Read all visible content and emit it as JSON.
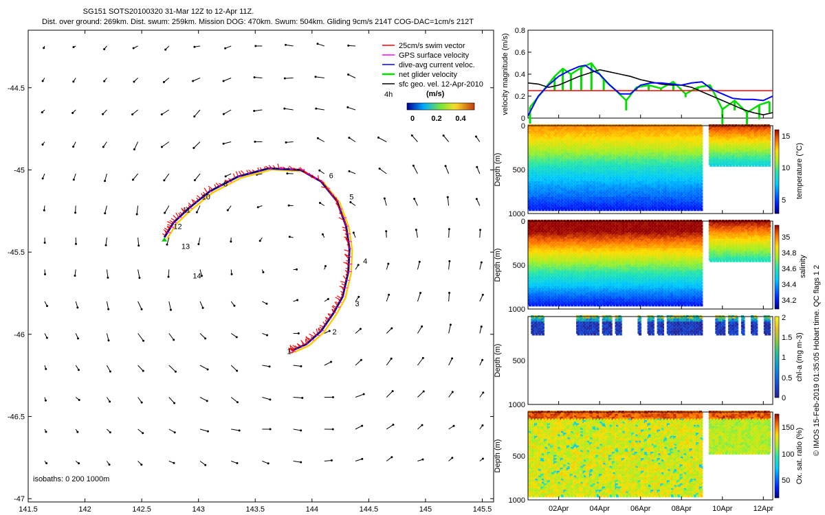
{
  "header": {
    "title": "SG151 SOTS20100320 31-Mar 12Z to 12-Apr 11Z.",
    "subtitle": "Dist. over ground: 269km. Dist. swum: 259km. Mission DOG: 470km. Swum: 504km. Gliding 9cm/s 214T COG-DAC=1cm/s 212T"
  },
  "side_note": "© IMOS 15-Feb-2019 01:35:05 Hobart time. QC flags 1 2",
  "colors": {
    "swim": "#ff0000",
    "gps": "#ff00ff",
    "dac": "#0000ff",
    "net": "#00dd00",
    "geo": "#000000",
    "track": "#000000",
    "threshold": "#ff0000"
  },
  "chart_data": [
    {
      "id": "map",
      "type": "scatter",
      "title": "",
      "xlim": [
        141.5,
        145.6
      ],
      "ylim": [
        -47.02,
        -44.15
      ],
      "xticks": [
        141.5,
        142,
        142.5,
        143,
        143.5,
        144,
        144.5,
        145,
        145.5
      ],
      "xtick_labels": [
        "141.5",
        "142",
        "142.5",
        "143",
        "143.5",
        "144",
        "144.5",
        "145",
        "145.5"
      ],
      "yticks": [
        -44.5,
        -45,
        -45.5,
        -46,
        -46.5,
        -47
      ],
      "ytick_labels": [
        "-44.5",
        "-45",
        "-45.5",
        "-46",
        "-46.5",
        "-47"
      ],
      "legend": [
        {
          "label": "25cm/s swim vector",
          "color": "#ff0000"
        },
        {
          "label": "GPS surface velocity",
          "color": "#ff00ff"
        },
        {
          "label": "dive-avg current veloc.",
          "color": "#0000ff"
        },
        {
          "label": "net glider velocity",
          "color": "#00dd00"
        },
        {
          "label": "sfc geo. vel. 12-Apr-2010",
          "color": "#000000"
        }
      ],
      "legend_hours": "4h",
      "colorbar_title": "(m/s)",
      "colorbar_ticks": [
        "0",
        "0.2",
        "0.4"
      ],
      "isobaths_label": "isobaths: 0   200  1000m",
      "track": [
        [
          143.82,
          -46.1
        ],
        [
          143.95,
          -46.06
        ],
        [
          144.08,
          -45.98
        ],
        [
          144.19,
          -45.87
        ],
        [
          144.27,
          -45.77
        ],
        [
          144.32,
          -45.62
        ],
        [
          144.33,
          -45.48
        ],
        [
          144.3,
          -45.34
        ],
        [
          144.22,
          -45.19
        ],
        [
          144.08,
          -45.07
        ],
        [
          143.9,
          -45.0
        ],
        [
          143.62,
          -44.99
        ],
        [
          143.35,
          -45.04
        ],
        [
          143.1,
          -45.13
        ],
        [
          142.92,
          -45.23
        ],
        [
          142.78,
          -45.32
        ],
        [
          142.7,
          -45.41
        ]
      ],
      "day_labels": [
        {
          "text": "1",
          "lon": 143.78,
          "lat": -46.12
        },
        {
          "text": "2",
          "lon": 144.18,
          "lat": -46.0
        },
        {
          "text": "3",
          "lon": 144.38,
          "lat": -45.83
        },
        {
          "text": "4",
          "lon": 144.45,
          "lat": -45.57
        },
        {
          "text": "5",
          "lon": 144.33,
          "lat": -45.18
        },
        {
          "text": "6",
          "lon": 144.15,
          "lat": -45.05
        },
        {
          "text": "8",
          "lon": 143.22,
          "lat": -45.1
        },
        {
          "text": "10",
          "lon": 143.03,
          "lat": -45.18
        },
        {
          "text": "11",
          "lon": 142.86,
          "lat": -45.26
        },
        {
          "text": "12",
          "lon": 142.78,
          "lat": -45.36
        },
        {
          "text": "13",
          "lon": 142.85,
          "lat": -45.48
        },
        {
          "text": "14",
          "lon": 142.95,
          "lat": -45.66
        }
      ]
    },
    {
      "id": "velocity",
      "type": "line",
      "ylabel": "velocity magnitude (m/s)",
      "ylim": [
        0,
        0.8
      ],
      "yticks": [
        "0",
        "0.2",
        "0.4",
        "0.6",
        "0.8"
      ],
      "threshold": 0.25,
      "series": [
        {
          "name": "dive-avg current veloc.",
          "color": "#0000ff",
          "x": [
            31.5,
            32,
            32.5,
            33,
            33.5,
            34,
            34.3,
            34.6,
            35,
            35.5,
            36,
            36.5,
            37,
            37.5,
            38,
            38.5,
            39,
            39.5,
            40,
            40.5,
            41,
            41.5,
            42,
            42.5,
            43,
            43.46
          ],
          "values": [
            0.02,
            0.2,
            0.3,
            0.38,
            0.43,
            0.47,
            0.48,
            0.44,
            0.4,
            0.3,
            0.22,
            0.22,
            0.3,
            0.32,
            0.32,
            0.31,
            0.3,
            0.32,
            0.33,
            0.26,
            0.22,
            0.18,
            0.17,
            0.17,
            0.16,
            0.2
          ]
        },
        {
          "name": "sfc geo. vel.",
          "color": "#000000",
          "x": [
            31.5,
            32,
            32.5,
            33,
            33.5,
            34,
            34.5,
            35,
            35.5,
            36,
            36.5,
            37,
            37.5,
            38,
            38.5,
            39,
            39.5,
            40,
            40.5,
            41,
            41.5,
            42,
            42.5,
            43,
            43.46
          ],
          "values": [
            0.32,
            0.31,
            0.28,
            0.3,
            0.34,
            0.38,
            0.41,
            0.44,
            0.42,
            0.4,
            0.38,
            0.35,
            0.33,
            0.31,
            0.3,
            0.3,
            0.28,
            0.24,
            0.2,
            0.16,
            0.12,
            0.08,
            0.05,
            0.03,
            0.05
          ]
        },
        {
          "name": "net glider velocity",
          "color": "#00dd00",
          "x": [
            31.6,
            32.2,
            32.8,
            33.2,
            33.6,
            34.1,
            34.6,
            35.2,
            35.8,
            36.3,
            36.8,
            37.4,
            38,
            38.6,
            39.2,
            39.8,
            40.4,
            41,
            41.6,
            42.2,
            42.8,
            43.3
          ],
          "values": [
            0.1,
            0.24,
            0.38,
            0.45,
            0.4,
            0.46,
            0.5,
            0.35,
            0.25,
            0.16,
            0.28,
            0.3,
            0.27,
            0.33,
            0.22,
            0.28,
            0.3,
            0.08,
            0.16,
            0.05,
            0.12,
            0.15
          ]
        }
      ]
    },
    {
      "id": "temperature",
      "type": "heatmap",
      "ylabel": "Depth (m)",
      "ylim": [
        1000,
        0
      ],
      "yticks": [
        "0",
        "500",
        "1000"
      ],
      "colorbar_label": "temperature (°C)",
      "colorbar_ticks": [
        "5",
        "10",
        "15"
      ],
      "colorbar_range": [
        4,
        16
      ]
    },
    {
      "id": "salinity",
      "type": "heatmap",
      "ylabel": "Depth (m)",
      "ylim": [
        1000,
        0
      ],
      "yticks": [
        "0",
        "500",
        "1000"
      ],
      "colorbar_label": "salinity",
      "colorbar_ticks": [
        "34.2",
        "34.4",
        "34.6",
        "34.8",
        "35"
      ],
      "colorbar_range": [
        34.1,
        35.15
      ]
    },
    {
      "id": "chla",
      "type": "heatmap",
      "ylabel": "Depth (m)",
      "ylim": [
        1000,
        0
      ],
      "yticks": [
        "0",
        "500",
        "1000"
      ],
      "colorbar_label": "chl-a (mg m-3)",
      "colorbar_ticks": [
        "0",
        "0.5",
        "1",
        "1.5",
        "2"
      ],
      "colorbar_range": [
        0,
        2
      ]
    },
    {
      "id": "oxygen",
      "type": "heatmap",
      "ylabel": "Depth (m)",
      "ylim": [
        1000,
        0
      ],
      "yticks": [
        "0",
        "500",
        "1000"
      ],
      "colorbar_label": "Ox. sat. ratio (%)",
      "colorbar_ticks": [
        "50",
        "100",
        "150"
      ],
      "colorbar_range": [
        20,
        175
      ],
      "time_range_days": [
        31.5,
        43.46
      ],
      "xticks": [
        33,
        35,
        37,
        39,
        41,
        43
      ],
      "xtick_labels": [
        "02Apr",
        "04Apr",
        "06Apr",
        "08Apr",
        "10Apr",
        "12Apr"
      ]
    }
  ]
}
